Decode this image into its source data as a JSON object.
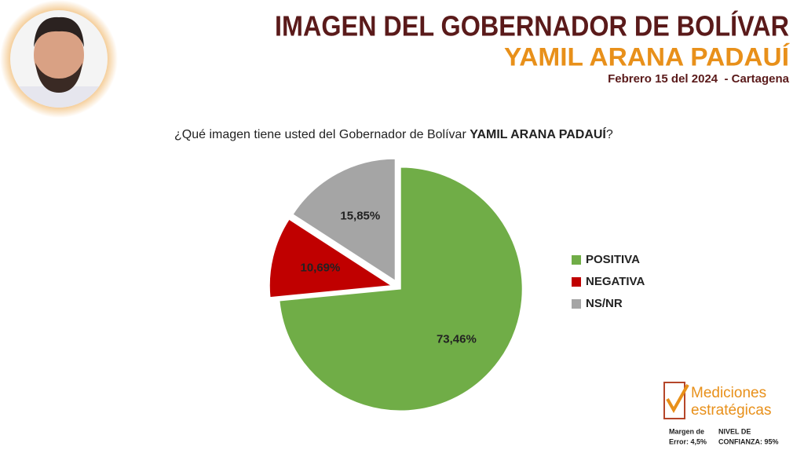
{
  "chart_data": {
    "type": "pie",
    "title": "IMAGEN DEL GOBERNADOR DE BOLÍVAR",
    "subtitle": "YAMIL ARANA PADAUÍ",
    "date": "Febrero 15 del 2024  - Cartagena",
    "question": {
      "text": "¿Qué imagen tiene usted del Gobernador de Bolívar ",
      "emphasis": "YAMIL ARANA PADAUÍ",
      "end": "?"
    },
    "categories": [
      "POSITIVA",
      "NEGATIVA",
      "NS/NR"
    ],
    "values": [
      73.46,
      10.69,
      15.85
    ],
    "value_labels": [
      "73,46%",
      "10,69%",
      "15,85%"
    ],
    "colors": [
      "#70ad47",
      "#c00000",
      "#a5a5a5"
    ],
    "legend": "right",
    "footer": {
      "brand": [
        "Mediciones",
        "estratégicas"
      ],
      "margin": [
        "Margen de",
        "Error: 4,5%"
      ],
      "confidence": [
        "NIVEL DE",
        "CONFIANZA: 95%"
      ]
    }
  }
}
